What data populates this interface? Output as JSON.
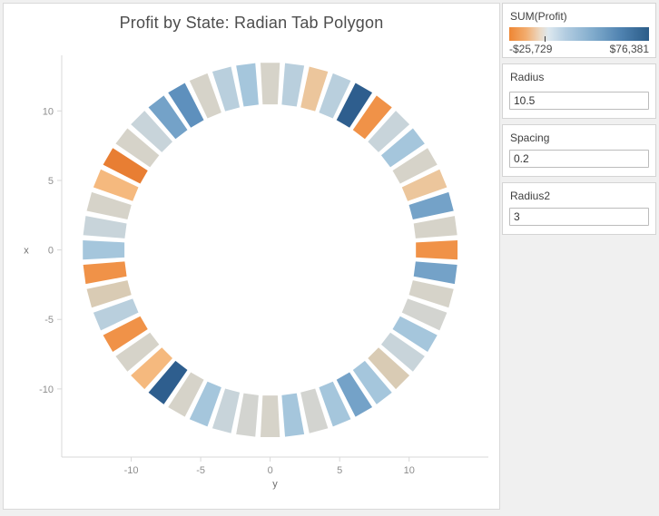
{
  "chart_data": {
    "type": "radial_bar_polygon",
    "title": "Profit by State: Radian Tab Polygon",
    "xlabel": "y",
    "ylabel": "x",
    "x_ticks": [
      -10,
      -5,
      0,
      5,
      10
    ],
    "y_ticks": [
      10,
      5,
      0,
      -5,
      -10
    ],
    "axes": {
      "x_min": -15.0,
      "x_max": 15.7,
      "y_min": -14.9,
      "y_max": 14.0,
      "grid": false
    },
    "ring": {
      "inner_radius": 10.5,
      "radial_length": 3,
      "segment_count": 48,
      "slot_angle_deg": 7.5,
      "segment_half_angle_deg": 2.95,
      "start_angle_deg": 0,
      "colors": [
        "#d6d3c9",
        "#b9cfdd",
        "#ecc69c",
        "#b9cfdd",
        "#2e5e8e",
        "#f09248",
        "#c8d4da",
        "#a5c6dc",
        "#d6d3c9",
        "#ecc69c",
        "#74a2c8",
        "#d6d3c9",
        "#f09248",
        "#74a2c8",
        "#d6d3c9",
        "#d3d4d0",
        "#a5c6dc",
        "#c8d4da",
        "#d9cbb4",
        "#a5c6dc",
        "#74a2c8",
        "#a5c6dc",
        "#d3d4d0",
        "#a5c6dc",
        "#d6d3c9",
        "#d3d4d0",
        "#c8d4da",
        "#a5c6dc",
        "#d6d3c9",
        "#2e5e8e",
        "#f5b97e",
        "#d6d3c9",
        "#f09248",
        "#b9cfdd",
        "#d9cbb4",
        "#f09248",
        "#a5c6dc",
        "#c8d4da",
        "#d6d3c9",
        "#f5b97e",
        "#e87e33",
        "#d6d3c9",
        "#c8d4da",
        "#74a2c8",
        "#5e90bd",
        "#d6d3c9",
        "#b9cfdd",
        "#a5c6dc"
      ]
    },
    "color_scale": {
      "field": "SUM(Profit)",
      "min": -25729,
      "max": 76381,
      "palette": "orange-blue diverging"
    },
    "style": {
      "axis_line_color": "#d8d8d8",
      "tick_label_color": "#8e8e8e",
      "axis_title_color": "#6e6e6e"
    }
  },
  "panel": {
    "legend": {
      "title": "SUM(Profit)",
      "min_label": "-$25,729",
      "max_label": "$76,381",
      "zero_tick_pct": 25.2,
      "gradient_stops": [
        {
          "pct": 0,
          "color": "#ee8633"
        },
        {
          "pct": 12,
          "color": "#f2ac6e"
        },
        {
          "pct": 22,
          "color": "#ecd9c4"
        },
        {
          "pct": 28,
          "color": "#dde8ef"
        },
        {
          "pct": 40,
          "color": "#b3cde1"
        },
        {
          "pct": 60,
          "color": "#80abcc"
        },
        {
          "pct": 80,
          "color": "#4f82b0"
        },
        {
          "pct": 100,
          "color": "#2b5c88"
        }
      ]
    },
    "params": [
      {
        "label": "Radius",
        "value": "10.5"
      },
      {
        "label": "Spacing",
        "value": "0.2"
      },
      {
        "label": "Radius2",
        "value": "3"
      }
    ]
  }
}
